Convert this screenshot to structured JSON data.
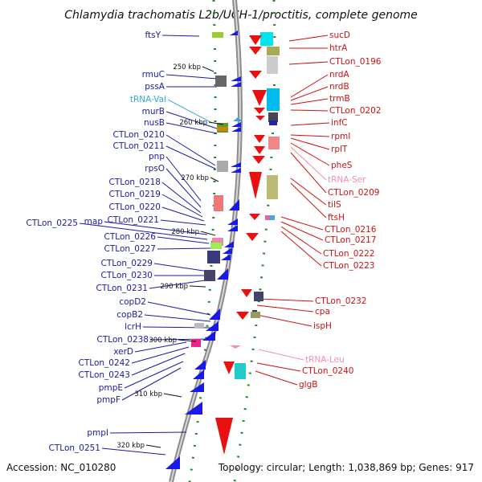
{
  "title": "Chlamydia trachomatis L2b/UCH-1/proctitis, complete genome",
  "footer": {
    "accession": "Accession: NC_010280",
    "summary": "Topology: circular; Length: 1,038,869 bp; Genes: 917"
  },
  "colors": {
    "left_label": "#1a1aa6",
    "right_label": "#cc1111",
    "trna_left": "#33aadd",
    "trna_right": "#f090b0",
    "arrow_blue": "#1a1ae6",
    "arrow_red": "#e81010",
    "backbone": "#909090",
    "tick_dots": "#228822"
  },
  "ticks": [
    "250 kbp",
    "260 kbp",
    "270 kbp",
    "280 kbp",
    "290 kbp",
    "300 kbp",
    "310 kbp",
    "320 kbp"
  ],
  "left_labels": [
    {
      "text": "ftsY",
      "color": "#1a1aa6"
    },
    {
      "text": "rmuC",
      "color": "#1a1aa6"
    },
    {
      "text": "pssA",
      "color": "#1a1aa6"
    },
    {
      "text": "tRNA-Val",
      "color": "#33aadd"
    },
    {
      "text": "murB",
      "color": "#1a1aa6"
    },
    {
      "text": "nusB",
      "color": "#1a1aa6"
    },
    {
      "text": "CTLon_0210",
      "color": "#1a1aa6"
    },
    {
      "text": "CTLon_0211",
      "color": "#1a1aa6"
    },
    {
      "text": "pnp",
      "color": "#1a1aa6"
    },
    {
      "text": "rpsO",
      "color": "#1a1aa6"
    },
    {
      "text": "CTLon_0218",
      "color": "#1a1aa6"
    },
    {
      "text": "CTLon_0219",
      "color": "#1a1aa6"
    },
    {
      "text": "CTLon_0220",
      "color": "#1a1aa6"
    },
    {
      "text": "CTLon_0221",
      "color": "#1a1aa6"
    },
    {
      "text": "CTLon_0225",
      "color": "#1a1aa6"
    },
    {
      "text": "map",
      "color": "#1a1aa6"
    },
    {
      "text": "CTLon_0226",
      "color": "#1a1aa6"
    },
    {
      "text": "CTLon_0227",
      "color": "#1a1aa6"
    },
    {
      "text": "CTLon_0229",
      "color": "#1a1aa6"
    },
    {
      "text": "CTLon_0230",
      "color": "#1a1aa6"
    },
    {
      "text": "CTLon_0231",
      "color": "#1a1aa6"
    },
    {
      "text": "copD2",
      "color": "#1a1aa6"
    },
    {
      "text": "copB2",
      "color": "#1a1aa6"
    },
    {
      "text": "lcrH",
      "color": "#1a1aa6"
    },
    {
      "text": "CTLon_0238",
      "color": "#1a1aa6"
    },
    {
      "text": "xerD",
      "color": "#1a1aa6"
    },
    {
      "text": "CTLon_0242",
      "color": "#1a1aa6"
    },
    {
      "text": "CTLon_0243",
      "color": "#1a1aa6"
    },
    {
      "text": "pmpE",
      "color": "#1a1aa6"
    },
    {
      "text": "pmpF",
      "color": "#1a1aa6"
    },
    {
      "text": "pmpI",
      "color": "#1a1aa6"
    },
    {
      "text": "CTLon_0251",
      "color": "#1a1aa6"
    }
  ],
  "right_labels": [
    {
      "text": "sucD",
      "color": "#cc1111"
    },
    {
      "text": "htrA",
      "color": "#cc1111"
    },
    {
      "text": "CTLon_0196",
      "color": "#cc1111"
    },
    {
      "text": "nrdA",
      "color": "#cc1111"
    },
    {
      "text": "nrdB",
      "color": "#cc1111"
    },
    {
      "text": "trmB",
      "color": "#cc1111"
    },
    {
      "text": "CTLon_0202",
      "color": "#cc1111"
    },
    {
      "text": "infC",
      "color": "#cc1111"
    },
    {
      "text": "rpmI",
      "color": "#cc1111"
    },
    {
      "text": "rplT",
      "color": "#cc1111"
    },
    {
      "text": "pheS",
      "color": "#cc1111"
    },
    {
      "text": "tRNA-Ser",
      "color": "#f090b0"
    },
    {
      "text": "CTLon_0209",
      "color": "#cc1111"
    },
    {
      "text": "tilS",
      "color": "#cc1111"
    },
    {
      "text": "ftsH",
      "color": "#cc1111"
    },
    {
      "text": "CTLon_0216",
      "color": "#cc1111"
    },
    {
      "text": "CTLon_0217",
      "color": "#cc1111"
    },
    {
      "text": "CTLon_0222",
      "color": "#cc1111"
    },
    {
      "text": "CTLon_0223",
      "color": "#cc1111"
    },
    {
      "text": "CTLon_0232",
      "color": "#cc1111"
    },
    {
      "text": "cpa",
      "color": "#cc1111"
    },
    {
      "text": "ispH",
      "color": "#cc1111"
    },
    {
      "text": "tRNA-Leu",
      "color": "#f090b0"
    },
    {
      "text": "CTLon_0240",
      "color": "#cc1111"
    },
    {
      "text": "glgB",
      "color": "#cc1111"
    }
  ]
}
